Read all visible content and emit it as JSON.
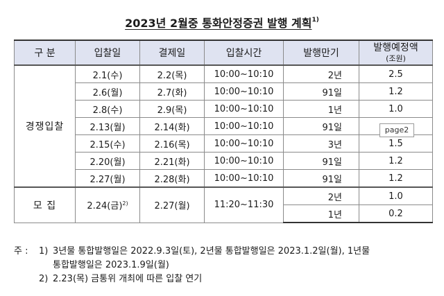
{
  "title": "2023년  2월중  통화안정증권  발행  계획",
  "title_note": "1)",
  "headers": {
    "category": "구  분",
    "bid_date": "입찰일",
    "settle_date": "결제일",
    "bid_time": "입찰시간",
    "maturity": "발행만기",
    "amount": "발행예정액",
    "amount_unit": "(조원)"
  },
  "competitive": {
    "label": "경쟁입찰",
    "rows": [
      {
        "bid": "2.1(수)",
        "settle": "2.2(목)",
        "time": "10:00~10:10",
        "maturity": "2년",
        "amount": "2.5"
      },
      {
        "bid": "2.6(월)",
        "settle": "2.7(화)",
        "time": "10:00~10:10",
        "maturity": "91일",
        "amount": "1.2"
      },
      {
        "bid": "2.8(수)",
        "settle": "2.9(목)",
        "time": "10:00~10:10",
        "maturity": "1년",
        "amount": "1.0"
      },
      {
        "bid": "2.13(월)",
        "settle": "2.14(화)",
        "time": "10:00~10:10",
        "maturity": "91일",
        "amount": ""
      },
      {
        "bid": "2.15(수)",
        "settle": "2.16(목)",
        "time": "10:00~10:10",
        "maturity": "3년",
        "amount": "1.5"
      },
      {
        "bid": "2.20(월)",
        "settle": "2.21(화)",
        "time": "10:00~10:10",
        "maturity": "91일",
        "amount": "1.2"
      },
      {
        "bid": "2.27(월)",
        "settle": "2.28(화)",
        "time": "10:00~10:10",
        "maturity": "91일",
        "amount": "1.2"
      }
    ]
  },
  "offering": {
    "label": "모  집",
    "bid": "2.24(금)",
    "bid_note": "2)",
    "settle": "2.27(월)",
    "time": "11:20~11:30",
    "rows": [
      {
        "maturity": "2년",
        "amount": "1.0"
      },
      {
        "maturity": "1년",
        "amount": "0.2"
      }
    ]
  },
  "page_badge": "page2",
  "notes": {
    "mark": "주 :",
    "items": [
      {
        "num": "1)",
        "line1": "3년물  통합발행일은  2022.9.3일(토),  2년물  통합발행일은  2023.1.2일(월),  1년물",
        "line2": "통합발행일은  2023.1.9일(월)"
      },
      {
        "num": "2)",
        "line1": "2.23(목)  금통위  개최에  따른  입찰  연기",
        "line2": ""
      }
    ]
  }
}
